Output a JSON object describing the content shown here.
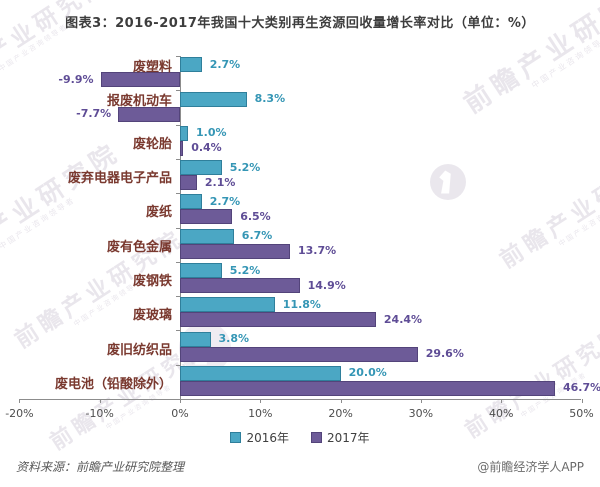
{
  "title": "图表3：2016-2017年我国十大类别再生资源回收量增长率对比（单位：%）",
  "chart_data": {
    "type": "bar",
    "orientation": "horizontal",
    "title": "图表3：2016-2017年我国十大类别再生资源回收量增长率对比（单位：%）",
    "categories": [
      "废塑料",
      "报废机动车",
      "废轮胎",
      "废弃电器电子产品",
      "废纸",
      "废有色金属",
      "废钢铁",
      "废玻璃",
      "废旧纺织品",
      "废电池（铅酸除外）"
    ],
    "series": [
      {
        "name": "2016年",
        "fill": "#4BA7C4",
        "border": "#2F7F9B",
        "label_color": "#3596B5",
        "values": [
          2.7,
          8.3,
          1.0,
          5.2,
          2.7,
          6.7,
          5.2,
          11.8,
          3.8,
          20.0
        ]
      },
      {
        "name": "2017年",
        "fill": "#6D5B98",
        "border": "#53447A",
        "label_color": "#5F4D96",
        "values": [
          -9.9,
          -7.7,
          0.4,
          2.1,
          6.5,
          13.7,
          14.9,
          24.4,
          29.6,
          46.7
        ]
      }
    ],
    "value_suffix": "%",
    "xlim": [
      -20,
      50
    ],
    "x_ticks": [
      {
        "label": "-20%",
        "value": -20
      },
      {
        "label": "-10%",
        "value": -10
      },
      {
        "label": "0%",
        "value": 0
      },
      {
        "label": "10%",
        "value": 10
      },
      {
        "label": "20%",
        "value": 20
      },
      {
        "label": "30%",
        "value": 30
      },
      {
        "label": "40%",
        "value": 40
      },
      {
        "label": "50%",
        "value": 50
      }
    ],
    "grid": false,
    "legend_position": "bottom"
  },
  "colors": {
    "category_label": "#7A392F",
    "axis": "#8C8C8C",
    "tick_label": "#4D4D4D",
    "title": "#3D3D3D"
  },
  "watermark": {
    "text": "前瞻产业研究院",
    "subtext": "中国产业咨询领导者"
  },
  "footer": {
    "source": "资料来源：前瞻产业研究院整理",
    "credit": "@前瞻经济学人APP"
  }
}
